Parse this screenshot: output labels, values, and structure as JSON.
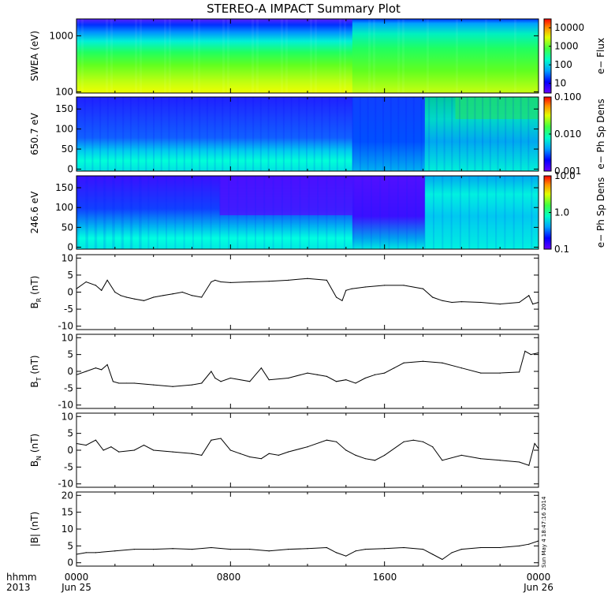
{
  "title": "STEREO-A IMPACT Summary Plot",
  "footer": {
    "time_label": "hhmm",
    "year": "2013",
    "x_ticks": [
      "0000",
      "0800",
      "1600",
      "0000"
    ],
    "date_labels": [
      "Jun 25",
      "Jun 26"
    ],
    "timestamp": "Sun May  4 18:47:16 2014"
  },
  "chart_data": [
    {
      "type": "heatmap",
      "panel": "swea",
      "ylabel": "SWEA (eV)",
      "y_ticks": [
        "100",
        "1000"
      ],
      "yrange": [
        95,
        2000
      ],
      "yscale": "log",
      "colorbar_label": "e− Flux",
      "colorbar_ticks": [
        "10",
        "100",
        "1000",
        "10000"
      ],
      "colorbar_range": [
        3,
        30000
      ],
      "colorbar_scale": "log"
    },
    {
      "type": "heatmap",
      "panel": "pad650",
      "ylabel": "650.7 eV",
      "y_ticks": [
        "0",
        "50",
        "100",
        "150"
      ],
      "yrange": [
        -5,
        180
      ],
      "colorbar_label": "e− Ph Sp Dens",
      "colorbar_ticks": [
        "0.001",
        "0.010",
        "0.100"
      ],
      "colorbar_range": [
        0.001,
        0.1
      ],
      "colorbar_scale": "log"
    },
    {
      "type": "heatmap",
      "panel": "pad246",
      "ylabel": "246.6 eV",
      "y_ticks": [
        "0",
        "50",
        "100",
        "150"
      ],
      "yrange": [
        -5,
        180
      ],
      "colorbar_label": "e− Ph Sp Dens",
      "colorbar_ticks": [
        "0.1",
        "1.0",
        "10.0"
      ],
      "colorbar_range": [
        0.1,
        10
      ],
      "colorbar_scale": "log"
    },
    {
      "type": "line",
      "panel": "br",
      "ylabel": "BR (nT)",
      "ylabel_main": "B",
      "ylabel_sub": "R",
      "ylabel_unit": " (nT)",
      "y_ticks": [
        "-10",
        "-5",
        "0",
        "5",
        "10"
      ],
      "ylim": [
        -11,
        11
      ],
      "x_hours": [
        0,
        0.5,
        1,
        1.3,
        1.6,
        2,
        2.3,
        2.6,
        3,
        3.5,
        4,
        4.5,
        5,
        5.5,
        6,
        6.5,
        7,
        7.2,
        7.5,
        8,
        9,
        10,
        11,
        12,
        13,
        13.5,
        13.8,
        14,
        14.3,
        15,
        16,
        17,
        18,
        18.5,
        19,
        19.5,
        20,
        21,
        22,
        23,
        23.5,
        23.7,
        24
      ],
      "values": [
        1,
        3,
        2,
        0.5,
        3.5,
        0,
        -1,
        -1.5,
        -2,
        -2.5,
        -1.5,
        -1,
        -0.5,
        0,
        -1,
        -1.5,
        3,
        3.5,
        3,
        2.8,
        3,
        3.2,
        3.5,
        4,
        3.5,
        -1.5,
        -2.5,
        0.5,
        1,
        1.5,
        2,
        2,
        1,
        -1.5,
        -2.5,
        -3,
        -2.8,
        -3,
        -3.5,
        -3,
        -1,
        -3.5,
        -3
      ]
    },
    {
      "type": "line",
      "panel": "bt",
      "ylabel": "BT (nT)",
      "ylabel_main": "B",
      "ylabel_sub": "T",
      "ylabel_unit": " (nT)",
      "y_ticks": [
        "-10",
        "-5",
        "0",
        "5",
        "10"
      ],
      "ylim": [
        -11,
        11
      ],
      "x_hours": [
        0,
        0.5,
        1,
        1.3,
        1.6,
        1.9,
        2.2,
        2.6,
        3,
        4,
        5,
        6,
        6.5,
        7,
        7.2,
        7.5,
        8,
        9,
        9.6,
        10,
        11,
        12,
        12.5,
        13,
        13.5,
        14,
        14.5,
        15,
        15.5,
        16,
        16.5,
        17,
        18,
        19,
        20,
        21,
        22,
        23,
        23.3,
        23.6,
        24
      ],
      "values": [
        -1,
        0,
        1,
        0.5,
        2,
        -3,
        -3.5,
        -3.5,
        -3.5,
        -4,
        -4.5,
        -4,
        -3.5,
        0,
        -2,
        -3,
        -2,
        -3,
        1,
        -2.5,
        -2,
        -0.5,
        -1,
        -1.5,
        -3,
        -2.5,
        -3.5,
        -2,
        -1,
        -0.5,
        1,
        2.5,
        3,
        2.5,
        1,
        -0.5,
        -0.5,
        -0.2,
        6,
        5,
        5.5
      ]
    },
    {
      "type": "line",
      "panel": "bn",
      "ylabel": "BN (nT)",
      "ylabel_main": "B",
      "ylabel_sub": "N",
      "ylabel_unit": " (nT)",
      "y_ticks": [
        "-10",
        "-5",
        "0",
        "5",
        "10"
      ],
      "ylim": [
        -11,
        11
      ],
      "x_hours": [
        0,
        0.5,
        1,
        1.4,
        1.8,
        2.2,
        3,
        3.5,
        4,
        5,
        6,
        6.5,
        7,
        7.5,
        8,
        8.5,
        9,
        9.6,
        10,
        10.5,
        11,
        12,
        13,
        13.5,
        14,
        14.5,
        15,
        15.5,
        16,
        17,
        17.5,
        18,
        18.5,
        19,
        20,
        21,
        22,
        23,
        23.5,
        23.8,
        24
      ],
      "values": [
        2,
        1.5,
        3,
        0,
        1,
        -0.5,
        0,
        1.5,
        0,
        -0.5,
        -1,
        -1.5,
        3,
        3.5,
        0,
        -1,
        -2,
        -2.5,
        -1,
        -1.5,
        -0.5,
        1,
        3,
        2.5,
        0,
        -1.5,
        -2.5,
        -3,
        -1.5,
        2.5,
        3,
        2.5,
        1,
        -3,
        -1.5,
        -2.5,
        -3,
        -3.5,
        -4.5,
        2,
        0.5
      ]
    },
    {
      "type": "line",
      "panel": "bmag",
      "ylabel": "|B| (nT)",
      "y_ticks": [
        "0",
        "5",
        "10",
        "15",
        "20"
      ],
      "ylim": [
        -1,
        21
      ],
      "x_hours": [
        0,
        0.5,
        1,
        2,
        3,
        4,
        5,
        6,
        7,
        8,
        9,
        10,
        11,
        12,
        13,
        13.5,
        14,
        14.5,
        15,
        16,
        17,
        18,
        18.5,
        19,
        19.5,
        20,
        21,
        22,
        23,
        23.5,
        24
      ],
      "values": [
        2.5,
        3,
        3,
        3.5,
        4,
        4,
        4.2,
        4,
        4.5,
        4,
        4,
        3.5,
        4,
        4.2,
        4.5,
        3,
        2,
        3.5,
        4,
        4.2,
        4.5,
        4,
        2.5,
        1,
        3,
        4,
        4.5,
        4.5,
        5,
        5.5,
        6.5
      ]
    }
  ]
}
